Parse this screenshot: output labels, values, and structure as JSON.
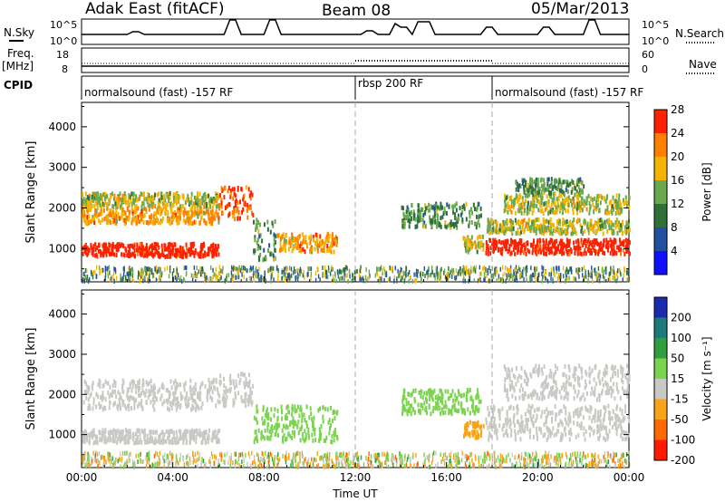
{
  "header": {
    "radar": "Adak East (fitACF)",
    "beam": "Beam 08",
    "date": "05/Mar/2013"
  },
  "top_panels": {
    "nsky_label": "N.Sky",
    "nsky_ticks": [
      "10^5",
      "10^0"
    ],
    "nsearch_label": "N.Search",
    "nsearch_ticks": [
      "10^5",
      "10^0"
    ],
    "freq_label": "Freq.",
    "freq_unit": "[MHz]",
    "freq_ticks": [
      "18",
      "8"
    ],
    "nave_label": "Nave",
    "nave_ticks": [
      "60",
      "0"
    ],
    "cpid_label": "CPID",
    "cpid_segments": [
      {
        "text": "normalsound (fast) -157 RF",
        "start_hour": 0
      },
      {
        "text": "rbsp 200 RF",
        "start_hour": 12
      },
      {
        "text": "normalsound (fast) -157 RF",
        "start_hour": 18
      }
    ]
  },
  "chart_data": [
    {
      "type": "heatmap",
      "panel": "power",
      "ylabel": "Slant Range [km]",
      "xlabel": "Time UT",
      "x_ticks": [
        "00:00",
        "04:00",
        "08:00",
        "12:00",
        "16:00",
        "20:00",
        "00:00"
      ],
      "y_ticks": [
        1000,
        2000,
        3000,
        4000
      ],
      "xlim": [
        0,
        24
      ],
      "ylim": [
        180,
        4600
      ],
      "colorbar_label": "Power [dB]",
      "colorbar_ticks": [
        4,
        8,
        12,
        16,
        20,
        24,
        28
      ],
      "colorbar_colors": [
        "#1010ff",
        "#2050a0",
        "#2e6f3a",
        "#6aa84f",
        "#f4b400",
        "#ff8000",
        "#ff2000"
      ],
      "bands": [
        {
          "t0": 0.0,
          "t1": 6.0,
          "r0": 780,
          "r1": 1100,
          "level": 28
        },
        {
          "t0": 0.0,
          "t1": 6.0,
          "r0": 1600,
          "r1": 2000,
          "level": 20
        },
        {
          "t0": 0.0,
          "t1": 6.0,
          "r0": 2000,
          "r1": 2350,
          "level": 16
        },
        {
          "t0": 6.0,
          "t1": 7.5,
          "r0": 1700,
          "r1": 2500,
          "level": 24
        },
        {
          "t0": 7.5,
          "t1": 8.5,
          "r0": 700,
          "r1": 1700,
          "level": 12
        },
        {
          "t0": 8.5,
          "t1": 11.2,
          "r0": 900,
          "r1": 1350,
          "level": 20
        },
        {
          "t0": 14.0,
          "t1": 17.5,
          "r0": 1500,
          "r1": 2100,
          "level": 12
        },
        {
          "t0": 16.7,
          "t1": 17.6,
          "r0": 900,
          "r1": 1300,
          "level": 16
        },
        {
          "t0": 17.7,
          "t1": 24.0,
          "r0": 850,
          "r1": 1200,
          "level": 28
        },
        {
          "t0": 17.7,
          "t1": 24.0,
          "r0": 1350,
          "r1": 1700,
          "level": 16
        },
        {
          "t0": 18.5,
          "t1": 24.0,
          "r0": 1850,
          "r1": 2300,
          "level": 16
        },
        {
          "t0": 19.0,
          "t1": 22.0,
          "r0": 2300,
          "r1": 2700,
          "level": 12
        }
      ]
    },
    {
      "type": "heatmap",
      "panel": "velocity",
      "ylabel": "Slant Range [km]",
      "xlabel": "Time UT",
      "x_ticks": [
        "00:00",
        "04:00",
        "08:00",
        "12:00",
        "16:00",
        "20:00",
        "00:00"
      ],
      "y_ticks": [
        1000,
        2000,
        3000,
        4000
      ],
      "xlim": [
        0,
        24
      ],
      "ylim": [
        180,
        4600
      ],
      "colorbar_label": "Velocity [m s⁻¹]",
      "colorbar_ticks": [
        200,
        100,
        50,
        15,
        -15,
        -50,
        -100,
        -200
      ],
      "colorbar_colors": [
        "#1a2bb0",
        "#1f7a7a",
        "#2e9e3e",
        "#7bd34f",
        "#c8c8c4",
        "#f7a41a",
        "#ff6a00",
        "#ff1a00"
      ],
      "bands": [
        {
          "t0": 0.0,
          "t1": 6.0,
          "r0": 780,
          "r1": 1100,
          "level": 0
        },
        {
          "t0": 0.0,
          "t1": 6.0,
          "r0": 1600,
          "r1": 2350,
          "level": 0
        },
        {
          "t0": 6.0,
          "t1": 7.5,
          "r0": 1700,
          "r1": 2500,
          "level": 0
        },
        {
          "t0": 7.5,
          "t1": 11.2,
          "r0": 800,
          "r1": 1700,
          "level": 30
        },
        {
          "t0": 14.0,
          "t1": 17.5,
          "r0": 1500,
          "r1": 2100,
          "level": 30
        },
        {
          "t0": 16.7,
          "t1": 17.6,
          "r0": 900,
          "r1": 1300,
          "level": -40
        },
        {
          "t0": 17.7,
          "t1": 24.0,
          "r0": 850,
          "r1": 1700,
          "level": 0
        },
        {
          "t0": 18.5,
          "t1": 24.0,
          "r0": 1850,
          "r1": 2700,
          "level": 0
        }
      ]
    }
  ]
}
